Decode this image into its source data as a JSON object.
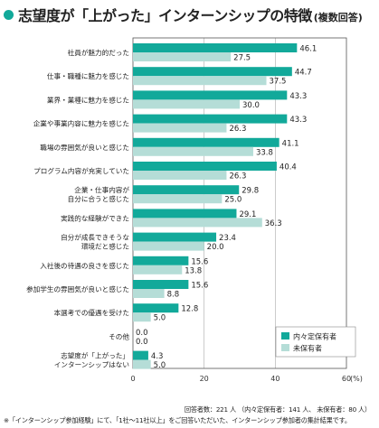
{
  "title": {
    "main": "志望度が「上がった」インターンシップの特徴",
    "sub": "(複数回答)"
  },
  "colors": {
    "holder": "#12a99a",
    "non_holder": "#b5ddd7",
    "title_dot": "#12a99a",
    "frame": "#555555",
    "grid": "#aaaaaa"
  },
  "footnote": {
    "respondents": "回答者数：221 人 （内々定保有者：141 人、 未保有者：80 人）",
    "note": "※「インターンシップ参加経験」にて、「1社～11社以上」をご回答いただいた、インターンシップ参加者の集計結果です。"
  },
  "chart_data": {
    "type": "bar",
    "orientation": "horizontal",
    "categories": [
      [
        "社員が魅力的だった"
      ],
      [
        "仕事・職種に魅力を感じた"
      ],
      [
        "業界・業種に魅力を感じた"
      ],
      [
        "企業や事業内容に魅力を感じた"
      ],
      [
        "職場の雰囲気が良いと感じた"
      ],
      [
        "プログラム内容が充実していた"
      ],
      [
        "企業・仕事内容が",
        "自分に合うと感じた"
      ],
      [
        "実践的な経験ができた"
      ],
      [
        "自分が成長できそうな",
        "環境だと感じた"
      ],
      [
        "入社後の待遇の良さを感じた"
      ],
      [
        "参加学生の雰囲気が良いと感じた"
      ],
      [
        "本選考での優遇を受けた"
      ],
      [
        "その他"
      ],
      [
        "志望度が「上がった」",
        "インターンシップはない"
      ]
    ],
    "series": [
      {
        "name": "内々定保有者",
        "values": [
          46.1,
          44.7,
          43.3,
          43.3,
          41.1,
          40.4,
          29.8,
          29.1,
          23.4,
          15.6,
          15.6,
          12.8,
          0.0,
          4.3
        ]
      },
      {
        "name": "未保有者",
        "values": [
          27.5,
          37.5,
          30.0,
          26.3,
          33.8,
          26.3,
          25.0,
          36.3,
          20.0,
          13.8,
          8.8,
          5.0,
          0.0,
          5.0
        ]
      }
    ],
    "xlim": [
      0,
      60
    ],
    "xticks": [
      "0",
      "20",
      "40",
      "60"
    ],
    "unit": "(%)",
    "legend_position": "bottom-right",
    "grid": true
  }
}
